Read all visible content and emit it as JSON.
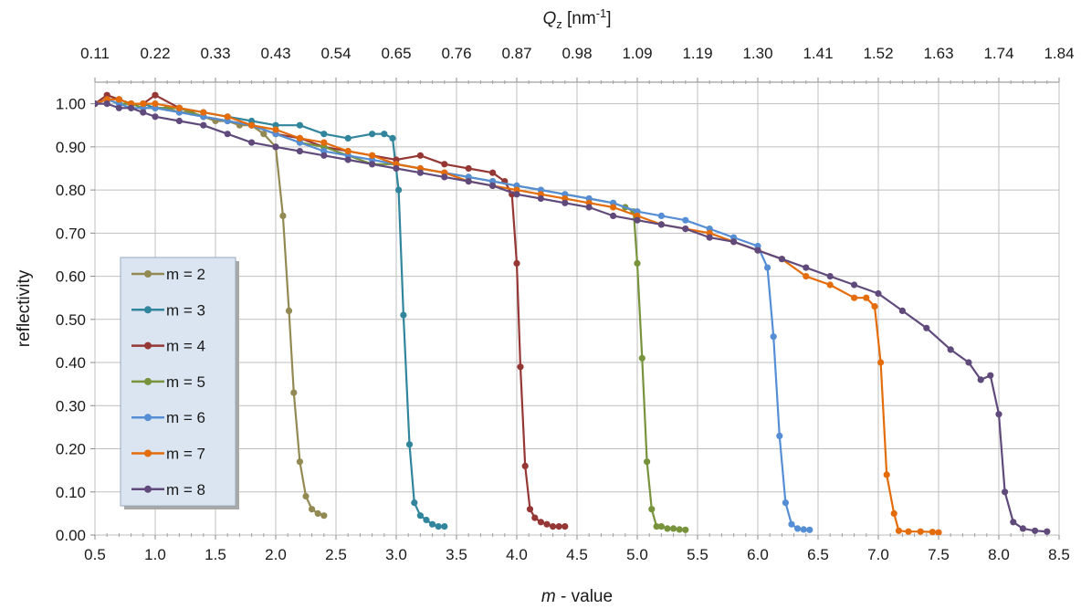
{
  "chart_data": {
    "type": "line",
    "xlabel_italic": "m",
    "xlabel_rest": " - value",
    "ylabel": "reflectivity",
    "top_axis_label_main": "Q",
    "top_axis_label_sub": "z",
    "top_axis_label_unit_open": " [nm",
    "top_axis_label_unit_sup": "-1",
    "top_axis_label_unit_close": "]",
    "xlim": [
      0.5,
      8.5
    ],
    "ylim": [
      0.0,
      1.05
    ],
    "x_ticks": [
      0.5,
      1.0,
      1.5,
      2.0,
      2.5,
      3.0,
      3.5,
      4.0,
      4.5,
      5.0,
      5.5,
      6.0,
      6.5,
      7.0,
      7.5,
      8.0,
      8.5
    ],
    "x_tick_labels": [
      "0.5",
      "1.0",
      "1.5",
      "2.0",
      "2.5",
      "3.0",
      "3.5",
      "4.0",
      "4.5",
      "5.0",
      "5.5",
      "6.0",
      "6.5",
      "7.0",
      "7.5",
      "8.0",
      "8.5"
    ],
    "y_ticks": [
      0.0,
      0.1,
      0.2,
      0.3,
      0.4,
      0.5,
      0.6,
      0.7,
      0.8,
      0.9,
      1.0
    ],
    "y_tick_labels": [
      "0.00",
      "0.10",
      "0.20",
      "0.30",
      "0.40",
      "0.50",
      "0.60",
      "0.70",
      "0.80",
      "0.90",
      "1.00"
    ],
    "top_tick_labels": [
      "0.11",
      "0.22",
      "0.33",
      "0.43",
      "0.54",
      "0.65",
      "0.76",
      "0.87",
      "0.98",
      "1.09",
      "1.19",
      "1.30",
      "1.41",
      "1.52",
      "1.63",
      "1.74",
      "1.84"
    ],
    "grid": true,
    "legend_position": "left",
    "series": [
      {
        "name": "m = 2",
        "color": "#938953",
        "points": [
          [
            0.5,
            1.0
          ],
          [
            0.6,
            1.01
          ],
          [
            0.7,
            1.0
          ],
          [
            0.8,
            1.0
          ],
          [
            0.9,
            0.99
          ],
          [
            1.0,
            0.99
          ],
          [
            1.1,
            0.99
          ],
          [
            1.2,
            0.98
          ],
          [
            1.3,
            0.98
          ],
          [
            1.4,
            0.97
          ],
          [
            1.5,
            0.96
          ],
          [
            1.6,
            0.96
          ],
          [
            1.7,
            0.95
          ],
          [
            1.8,
            0.95
          ],
          [
            1.9,
            0.93
          ],
          [
            2.0,
            0.9
          ],
          [
            2.06,
            0.74
          ],
          [
            2.11,
            0.52
          ],
          [
            2.15,
            0.33
          ],
          [
            2.2,
            0.17
          ],
          [
            2.25,
            0.09
          ],
          [
            2.3,
            0.06
          ],
          [
            2.35,
            0.05
          ],
          [
            2.4,
            0.045
          ]
        ]
      },
      {
        "name": "m = 3",
        "color": "#31859c",
        "points": [
          [
            0.5,
            1.0
          ],
          [
            0.6,
            1.01
          ],
          [
            0.7,
            1.01
          ],
          [
            0.8,
            1.0
          ],
          [
            0.9,
            1.0
          ],
          [
            1.0,
            0.99
          ],
          [
            1.2,
            0.99
          ],
          [
            1.4,
            0.98
          ],
          [
            1.6,
            0.97
          ],
          [
            1.8,
            0.96
          ],
          [
            2.0,
            0.95
          ],
          [
            2.2,
            0.95
          ],
          [
            2.4,
            0.93
          ],
          [
            2.6,
            0.92
          ],
          [
            2.8,
            0.93
          ],
          [
            2.9,
            0.93
          ],
          [
            2.97,
            0.92
          ],
          [
            3.02,
            0.8
          ],
          [
            3.06,
            0.51
          ],
          [
            3.11,
            0.21
          ],
          [
            3.15,
            0.075
          ],
          [
            3.2,
            0.045
          ],
          [
            3.25,
            0.035
          ],
          [
            3.3,
            0.025
          ],
          [
            3.35,
            0.02
          ],
          [
            3.4,
            0.02
          ]
        ]
      },
      {
        "name": "m = 4",
        "color": "#953735",
        "points": [
          [
            0.5,
            1.0
          ],
          [
            0.6,
            1.02
          ],
          [
            0.7,
            1.01
          ],
          [
            0.8,
            1.0
          ],
          [
            0.9,
            1.0
          ],
          [
            1.0,
            1.02
          ],
          [
            1.2,
            0.99
          ],
          [
            1.4,
            0.97
          ],
          [
            1.6,
            0.96
          ],
          [
            1.8,
            0.95
          ],
          [
            2.0,
            0.93
          ],
          [
            2.2,
            0.92
          ],
          [
            2.4,
            0.9
          ],
          [
            2.6,
            0.89
          ],
          [
            2.8,
            0.88
          ],
          [
            3.0,
            0.87
          ],
          [
            3.2,
            0.88
          ],
          [
            3.4,
            0.86
          ],
          [
            3.6,
            0.85
          ],
          [
            3.8,
            0.84
          ],
          [
            3.9,
            0.82
          ],
          [
            3.96,
            0.79
          ],
          [
            4.0,
            0.63
          ],
          [
            4.03,
            0.39
          ],
          [
            4.07,
            0.16
          ],
          [
            4.11,
            0.06
          ],
          [
            4.15,
            0.04
          ],
          [
            4.2,
            0.03
          ],
          [
            4.25,
            0.025
          ],
          [
            4.3,
            0.02
          ],
          [
            4.35,
            0.02
          ],
          [
            4.4,
            0.02
          ]
        ]
      },
      {
        "name": "m = 5",
        "color": "#77933c",
        "points": [
          [
            0.5,
            1.0
          ],
          [
            0.6,
            1.01
          ],
          [
            0.7,
            1.0
          ],
          [
            0.8,
            1.0
          ],
          [
            0.9,
            0.99
          ],
          [
            1.0,
            0.99
          ],
          [
            1.2,
            0.99
          ],
          [
            1.4,
            0.97
          ],
          [
            1.6,
            0.96
          ],
          [
            1.8,
            0.95
          ],
          [
            2.0,
            0.93
          ],
          [
            2.2,
            0.91
          ],
          [
            2.4,
            0.9
          ],
          [
            2.6,
            0.88
          ],
          [
            2.8,
            0.86
          ],
          [
            3.0,
            0.86
          ],
          [
            3.2,
            0.85
          ],
          [
            3.4,
            0.84
          ],
          [
            3.6,
            0.83
          ],
          [
            3.8,
            0.82
          ],
          [
            4.0,
            0.81
          ],
          [
            4.2,
            0.8
          ],
          [
            4.4,
            0.79
          ],
          [
            4.6,
            0.78
          ],
          [
            4.8,
            0.77
          ],
          [
            4.9,
            0.76
          ],
          [
            4.97,
            0.75
          ],
          [
            5.0,
            0.63
          ],
          [
            5.04,
            0.41
          ],
          [
            5.08,
            0.17
          ],
          [
            5.12,
            0.06
          ],
          [
            5.16,
            0.02
          ],
          [
            5.2,
            0.02
          ],
          [
            5.25,
            0.015
          ],
          [
            5.3,
            0.015
          ],
          [
            5.35,
            0.013
          ],
          [
            5.4,
            0.012
          ]
        ]
      },
      {
        "name": "m = 6",
        "color": "#558ed5",
        "points": [
          [
            0.5,
            1.0
          ],
          [
            0.6,
            1.01
          ],
          [
            0.7,
            1.0
          ],
          [
            0.8,
            0.99
          ],
          [
            0.9,
            0.99
          ],
          [
            1.0,
            0.99
          ],
          [
            1.2,
            0.98
          ],
          [
            1.4,
            0.97
          ],
          [
            1.6,
            0.96
          ],
          [
            1.8,
            0.95
          ],
          [
            2.0,
            0.93
          ],
          [
            2.2,
            0.91
          ],
          [
            2.4,
            0.89
          ],
          [
            2.6,
            0.88
          ],
          [
            2.8,
            0.87
          ],
          [
            3.0,
            0.86
          ],
          [
            3.2,
            0.85
          ],
          [
            3.4,
            0.84
          ],
          [
            3.6,
            0.83
          ],
          [
            3.8,
            0.82
          ],
          [
            4.0,
            0.81
          ],
          [
            4.2,
            0.8
          ],
          [
            4.4,
            0.79
          ],
          [
            4.6,
            0.78
          ],
          [
            4.8,
            0.77
          ],
          [
            5.0,
            0.75
          ],
          [
            5.2,
            0.74
          ],
          [
            5.4,
            0.73
          ],
          [
            5.6,
            0.71
          ],
          [
            5.8,
            0.69
          ],
          [
            6.0,
            0.67
          ],
          [
            6.08,
            0.62
          ],
          [
            6.13,
            0.46
          ],
          [
            6.18,
            0.23
          ],
          [
            6.23,
            0.075
          ],
          [
            6.28,
            0.025
          ],
          [
            6.33,
            0.015
          ],
          [
            6.38,
            0.013
          ],
          [
            6.43,
            0.012
          ]
        ]
      },
      {
        "name": "m = 7",
        "color": "#e46c0a",
        "points": [
          [
            0.5,
            1.0
          ],
          [
            0.6,
            1.01
          ],
          [
            0.7,
            1.01
          ],
          [
            0.8,
            1.0
          ],
          [
            0.9,
            1.0
          ],
          [
            1.0,
            1.0
          ],
          [
            1.2,
            0.99
          ],
          [
            1.4,
            0.98
          ],
          [
            1.6,
            0.97
          ],
          [
            1.8,
            0.95
          ],
          [
            2.0,
            0.94
          ],
          [
            2.2,
            0.92
          ],
          [
            2.4,
            0.91
          ],
          [
            2.6,
            0.89
          ],
          [
            2.8,
            0.88
          ],
          [
            3.0,
            0.86
          ],
          [
            3.2,
            0.85
          ],
          [
            3.4,
            0.84
          ],
          [
            3.6,
            0.82
          ],
          [
            3.8,
            0.81
          ],
          [
            4.0,
            0.8
          ],
          [
            4.2,
            0.79
          ],
          [
            4.4,
            0.78
          ],
          [
            4.6,
            0.77
          ],
          [
            4.8,
            0.76
          ],
          [
            5.0,
            0.74
          ],
          [
            5.2,
            0.72
          ],
          [
            5.4,
            0.71
          ],
          [
            5.6,
            0.7
          ],
          [
            5.8,
            0.68
          ],
          [
            6.0,
            0.66
          ],
          [
            6.2,
            0.64
          ],
          [
            6.4,
            0.6
          ],
          [
            6.6,
            0.58
          ],
          [
            6.8,
            0.55
          ],
          [
            6.9,
            0.55
          ],
          [
            6.97,
            0.53
          ],
          [
            7.02,
            0.4
          ],
          [
            7.07,
            0.14
          ],
          [
            7.13,
            0.05
          ],
          [
            7.17,
            0.01
          ],
          [
            7.25,
            0.008
          ],
          [
            7.35,
            0.008
          ],
          [
            7.45,
            0.007
          ],
          [
            7.5,
            0.006
          ]
        ]
      },
      {
        "name": "m = 8",
        "color": "#604a7b",
        "points": [
          [
            0.5,
            1.0
          ],
          [
            0.6,
            1.0
          ],
          [
            0.7,
            0.99
          ],
          [
            0.8,
            0.99
          ],
          [
            0.9,
            0.98
          ],
          [
            1.0,
            0.97
          ],
          [
            1.2,
            0.96
          ],
          [
            1.4,
            0.95
          ],
          [
            1.6,
            0.93
          ],
          [
            1.8,
            0.91
          ],
          [
            2.0,
            0.9
          ],
          [
            2.2,
            0.89
          ],
          [
            2.4,
            0.88
          ],
          [
            2.6,
            0.87
          ],
          [
            2.8,
            0.86
          ],
          [
            3.0,
            0.85
          ],
          [
            3.2,
            0.84
          ],
          [
            3.4,
            0.83
          ],
          [
            3.6,
            0.82
          ],
          [
            3.8,
            0.81
          ],
          [
            4.0,
            0.79
          ],
          [
            4.2,
            0.78
          ],
          [
            4.4,
            0.77
          ],
          [
            4.6,
            0.76
          ],
          [
            4.8,
            0.74
          ],
          [
            5.0,
            0.73
          ],
          [
            5.2,
            0.72
          ],
          [
            5.4,
            0.71
          ],
          [
            5.6,
            0.69
          ],
          [
            5.8,
            0.68
          ],
          [
            6.0,
            0.66
          ],
          [
            6.2,
            0.64
          ],
          [
            6.4,
            0.62
          ],
          [
            6.6,
            0.6
          ],
          [
            6.8,
            0.58
          ],
          [
            7.0,
            0.56
          ],
          [
            7.2,
            0.52
          ],
          [
            7.4,
            0.48
          ],
          [
            7.6,
            0.43
          ],
          [
            7.75,
            0.4
          ],
          [
            7.85,
            0.36
          ],
          [
            7.93,
            0.37
          ],
          [
            8.0,
            0.28
          ],
          [
            8.05,
            0.1
          ],
          [
            8.12,
            0.03
          ],
          [
            8.2,
            0.015
          ],
          [
            8.3,
            0.01
          ],
          [
            8.4,
            0.008
          ]
        ]
      }
    ]
  }
}
